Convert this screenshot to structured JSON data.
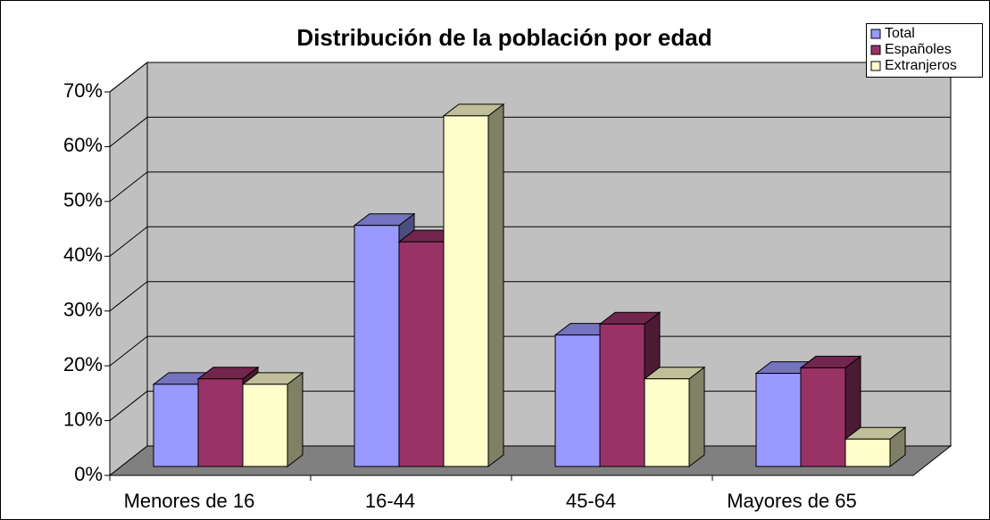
{
  "chart_data": {
    "type": "bar3d",
    "title": "Distribución de la población por edad",
    "categories": [
      "Menores de 16",
      "16-44",
      "45-64",
      "Mayores de 65"
    ],
    "series": [
      {
        "name": "Total",
        "color": "#9999ff",
        "values": [
          15,
          44,
          24,
          17
        ]
      },
      {
        "name": "Españoles",
        "color": "#993366",
        "values": [
          16,
          41,
          26,
          18
        ]
      },
      {
        "name": "Extranjeros",
        "color": "#ffffcc",
        "values": [
          15,
          64,
          16,
          5
        ]
      }
    ],
    "ylim": [
      0,
      70
    ],
    "yticks": [
      {
        "value": 0,
        "label": "0%"
      },
      {
        "value": 10,
        "label": "10%"
      },
      {
        "value": 20,
        "label": "20%"
      },
      {
        "value": 30,
        "label": "30%"
      },
      {
        "value": 40,
        "label": "40%"
      },
      {
        "value": 50,
        "label": "50%"
      },
      {
        "value": 60,
        "label": "60%"
      },
      {
        "value": 70,
        "label": "70%"
      }
    ],
    "grid": true,
    "legend": "top-right"
  }
}
